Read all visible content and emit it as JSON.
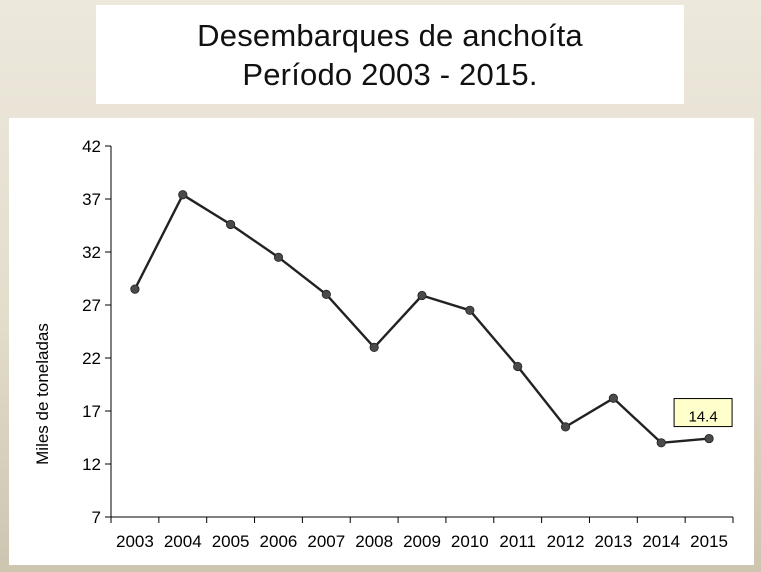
{
  "title": {
    "line1": "Desembarques de anchoíta",
    "line2": "Período 2003 - 2015."
  },
  "chart_data": {
    "type": "line",
    "title": "Desembarques de anchoíta Período 2003 - 2015.",
    "xlabel": "",
    "ylabel": "Miles de toneladas",
    "categories": [
      "2003",
      "2004",
      "2005",
      "2006",
      "2007",
      "2008",
      "2009",
      "2010",
      "2011",
      "2012",
      "2013",
      "2014",
      "2015"
    ],
    "series": [
      {
        "values": [
          28.5,
          37.4,
          34.6,
          31.5,
          28.0,
          23.0,
          27.9,
          26.5,
          21.2,
          15.5,
          18.2,
          14.0,
          14.4
        ],
        "color": "#222222",
        "marker_color": "#4a4a4a"
      }
    ],
    "ylim": [
      7,
      42
    ],
    "yticks": [
      "7",
      "12",
      "17",
      "22",
      "27",
      "32",
      "37",
      "42"
    ],
    "grid": false,
    "legend": "none",
    "annotations": [
      {
        "category": "2015",
        "text": "14.4",
        "fill": "#ffffcc"
      }
    ]
  }
}
